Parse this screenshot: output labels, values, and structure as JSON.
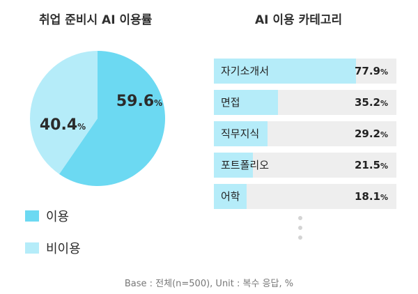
{
  "chart_data": [
    {
      "type": "pie",
      "title": "취업 준비시 AI 이용률",
      "slices": [
        {
          "name": "이용",
          "value": 59.6,
          "label": "59.6",
          "color": "#6cd9f2"
        },
        {
          "name": "비이용",
          "value": 40.4,
          "label": "40.4",
          "color": "#b5ecf9"
        }
      ],
      "unit": "%",
      "legend": "bottom-left"
    },
    {
      "type": "bar",
      "orientation": "horizontal",
      "title": "AI 이용 카테고리",
      "categories": [
        "자기소개서",
        "면접",
        "직무지식",
        "포트폴리오",
        "어학"
      ],
      "values": [
        77.9,
        35.2,
        29.2,
        21.5,
        18.1
      ],
      "value_labels": [
        "77.9",
        "35.2",
        "29.2",
        "21.5",
        "18.1"
      ],
      "unit": "%",
      "xlim": [
        0,
        100
      ],
      "bar_color": "#b5ecf9",
      "track_color": "#eeeeee"
    }
  ],
  "footnote": "Base : 전체(n=500), Unit : 복수 응답, %"
}
